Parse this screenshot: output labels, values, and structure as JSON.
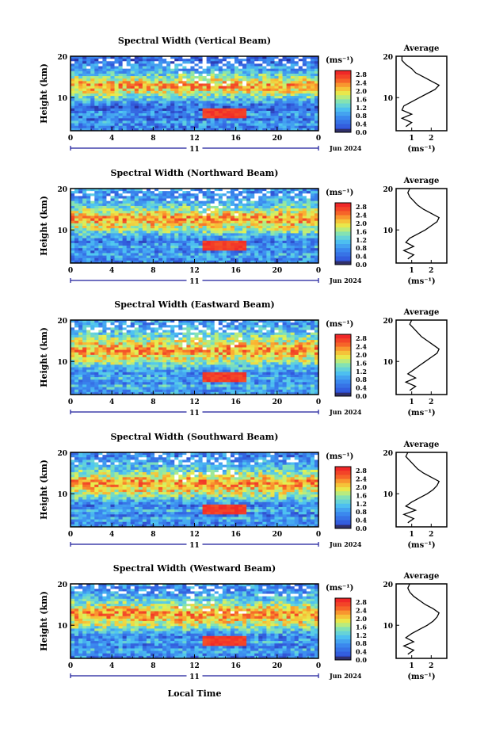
{
  "figure": {
    "xlabel": "Local Time",
    "date_label": "Jun 2024",
    "day_label": "11",
    "colorbar_unit": "(ms⁻¹)",
    "avg_title": "Average",
    "avg_xlabel": "(ms⁻¹)"
  },
  "chart_data": [
    {
      "type": "heatmap",
      "title": "Spectral Width (Vertical Beam)",
      "ylabel": "Height (km)",
      "x_ticks": [
        "0",
        "4",
        "8",
        "12",
        "16",
        "20",
        "0"
      ],
      "y_ticks": [
        "20",
        "10"
      ],
      "xlim": [
        0,
        24
      ],
      "ylim": [
        2,
        20
      ],
      "colorbar_ticks": [
        "2.8",
        "2.4",
        "2.0",
        "1.6",
        "1.2",
        "0.8",
        "0.4",
        "0.0"
      ],
      "colorbar_range": [
        0,
        3.0
      ],
      "average_profile": {
        "x_ticks": [
          "1",
          "2"
        ],
        "y_ticks": [
          "20",
          "10"
        ],
        "xlim": [
          0.2,
          2.8
        ],
        "height_km": [
          3,
          4,
          5,
          6,
          7,
          8,
          9,
          10,
          11,
          12,
          13,
          14,
          15,
          16,
          17,
          18,
          19,
          20
        ],
        "width_ms": [
          0.7,
          1.0,
          0.5,
          1.0,
          0.5,
          0.6,
          1.0,
          1.4,
          1.8,
          2.2,
          2.4,
          2.0,
          1.6,
          1.2,
          1.0,
          0.7,
          0.5,
          0.5
        ]
      }
    },
    {
      "type": "heatmap",
      "title": "Spectral Width (Northward Beam)",
      "ylabel": "Height (km)",
      "x_ticks": [
        "0",
        "4",
        "8",
        "12",
        "16",
        "20",
        "0"
      ],
      "y_ticks": [
        "20",
        "10"
      ],
      "xlim": [
        0,
        24
      ],
      "ylim": [
        2,
        20
      ],
      "colorbar_ticks": [
        "2.8",
        "2.4",
        "2.0",
        "1.6",
        "1.2",
        "0.8",
        "0.4",
        "0.0"
      ],
      "colorbar_range": [
        0,
        3.0
      ],
      "average_profile": {
        "x_ticks": [
          "1",
          "2"
        ],
        "y_ticks": [
          "20",
          "10"
        ],
        "xlim": [
          0.2,
          2.8
        ],
        "height_km": [
          3,
          4,
          5,
          6,
          7,
          8,
          9,
          10,
          11,
          12,
          13,
          14,
          15,
          16,
          17,
          18,
          19,
          20
        ],
        "width_ms": [
          0.8,
          1.1,
          0.6,
          1.1,
          0.7,
          0.9,
          1.3,
          1.7,
          2.0,
          2.3,
          2.4,
          2.0,
          1.6,
          1.3,
          1.1,
          0.9,
          0.8,
          0.9
        ]
      }
    },
    {
      "type": "heatmap",
      "title": "Spectral Width (Eastward Beam)",
      "ylabel": "Height (km)",
      "x_ticks": [
        "0",
        "4",
        "8",
        "12",
        "16",
        "20",
        "0"
      ],
      "y_ticks": [
        "20",
        "10"
      ],
      "xlim": [
        0,
        24
      ],
      "ylim": [
        2,
        20
      ],
      "colorbar_ticks": [
        "2.8",
        "2.4",
        "2.0",
        "1.6",
        "1.2",
        "0.8",
        "0.4",
        "0.0"
      ],
      "colorbar_range": [
        0,
        3.0
      ],
      "average_profile": {
        "x_ticks": [
          "1",
          "2"
        ],
        "y_ticks": [
          "20",
          "10"
        ],
        "xlim": [
          0.2,
          2.8
        ],
        "height_km": [
          3,
          4,
          5,
          6,
          7,
          8,
          9,
          10,
          11,
          12,
          13,
          14,
          15,
          16,
          17,
          18,
          19,
          20
        ],
        "width_ms": [
          0.9,
          1.2,
          0.7,
          1.2,
          0.8,
          1.1,
          1.4,
          1.7,
          2.0,
          2.3,
          2.4,
          2.1,
          1.8,
          1.5,
          1.3,
          1.1,
          0.9,
          1.0
        ]
      }
    },
    {
      "type": "heatmap",
      "title": "Spectral Width (Southward Beam)",
      "ylabel": "Height (km)",
      "x_ticks": [
        "0",
        "4",
        "8",
        "12",
        "16",
        "20",
        "0"
      ],
      "y_ticks": [
        "20",
        "10"
      ],
      "xlim": [
        0,
        24
      ],
      "ylim": [
        2,
        20
      ],
      "colorbar_ticks": [
        "2.8",
        "2.4",
        "2.0",
        "1.6",
        "1.2",
        "0.8",
        "0.4",
        "0.0"
      ],
      "colorbar_range": [
        0,
        3.0
      ],
      "average_profile": {
        "x_ticks": [
          "1",
          "2"
        ],
        "y_ticks": [
          "20",
          "10"
        ],
        "xlim": [
          0.2,
          2.8
        ],
        "height_km": [
          3,
          4,
          5,
          6,
          7,
          8,
          9,
          10,
          11,
          12,
          13,
          14,
          15,
          16,
          17,
          18,
          19,
          20
        ],
        "width_ms": [
          0.8,
          1.1,
          0.6,
          1.2,
          0.7,
          1.0,
          1.4,
          1.8,
          2.1,
          2.3,
          2.4,
          2.0,
          1.6,
          1.3,
          1.1,
          0.9,
          0.7,
          0.8
        ]
      }
    },
    {
      "type": "heatmap",
      "title": "Spectral Width (Westward Beam)",
      "ylabel": "Height (km)",
      "x_ticks": [
        "0",
        "4",
        "8",
        "12",
        "16",
        "20",
        "0"
      ],
      "y_ticks": [
        "20",
        "10"
      ],
      "xlim": [
        0,
        24
      ],
      "ylim": [
        2,
        20
      ],
      "colorbar_ticks": [
        "2.8",
        "2.4",
        "2.0",
        "1.6",
        "1.2",
        "0.8",
        "0.4",
        "0.0"
      ],
      "colorbar_range": [
        0,
        3.0
      ],
      "average_profile": {
        "x_ticks": [
          "1",
          "2"
        ],
        "y_ticks": [
          "20",
          "10"
        ],
        "xlim": [
          0.2,
          2.8
        ],
        "height_km": [
          3,
          4,
          5,
          6,
          7,
          8,
          9,
          10,
          11,
          12,
          13,
          14,
          15,
          16,
          17,
          18,
          19,
          20
        ],
        "width_ms": [
          0.8,
          1.1,
          0.6,
          1.1,
          0.7,
          1.0,
          1.4,
          1.8,
          2.1,
          2.3,
          2.4,
          2.1,
          1.7,
          1.4,
          1.1,
          0.9,
          0.8,
          0.9
        ]
      }
    }
  ]
}
